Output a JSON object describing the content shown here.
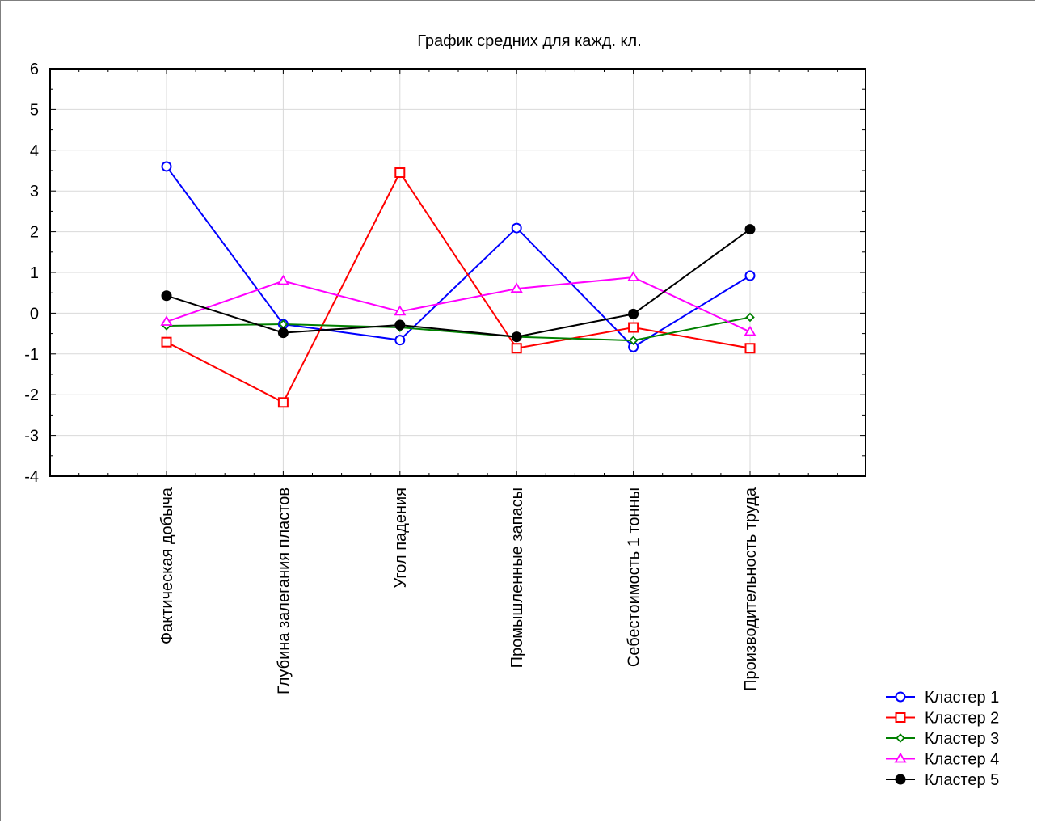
{
  "chart_data": {
    "type": "line",
    "title": "График средних для кажд. кл.",
    "xlabel": "",
    "ylabel": "",
    "ylim": [
      -4,
      6
    ],
    "yticks": [
      6,
      5,
      4,
      3,
      2,
      1,
      0,
      -1,
      -2,
      -3,
      -4
    ],
    "grid": true,
    "legend_position": "bottom-right",
    "categories": [
      "Фактическая добыча",
      "Глубина залегания пластов",
      "Угол падения",
      "Промышленные запасы",
      "Себестоимость 1 тонны",
      "Производительность труда"
    ],
    "series": [
      {
        "name": "Кластер  1",
        "color": "#0000ff",
        "marker": "circle-open",
        "values": [
          3.6,
          -0.27,
          -0.66,
          2.09,
          -0.83,
          0.92
        ]
      },
      {
        "name": "Кластер  2",
        "color": "#ff0000",
        "marker": "square-open",
        "values": [
          -0.71,
          -2.19,
          3.45,
          -0.86,
          -0.35,
          -0.86
        ]
      },
      {
        "name": "Кластер  3",
        "color": "#008000",
        "marker": "diamond-open",
        "values": [
          -0.31,
          -0.27,
          -0.35,
          -0.58,
          -0.67,
          -0.1
        ]
      },
      {
        "name": "Кластер  4",
        "color": "#ff00ff",
        "marker": "triangle-open",
        "values": [
          -0.21,
          0.79,
          0.04,
          0.6,
          0.88,
          -0.46
        ]
      },
      {
        "name": "Кластер  5",
        "color": "#000000",
        "marker": "circle-filled",
        "values": [
          0.43,
          -0.48,
          -0.29,
          -0.58,
          -0.02,
          2.06
        ]
      }
    ]
  }
}
